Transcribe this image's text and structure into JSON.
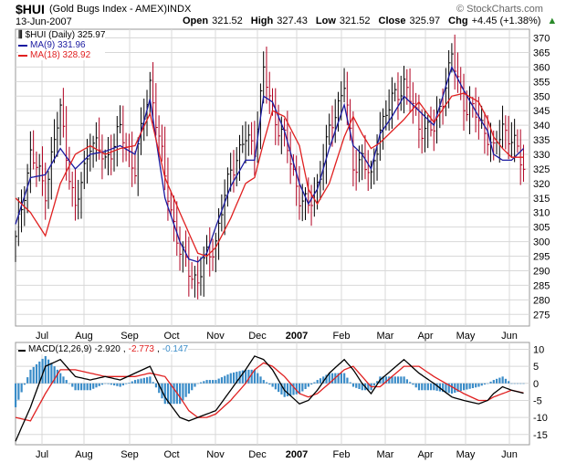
{
  "header": {
    "symbol": "$HUI",
    "name": "(Gold Bugs Index - AMEX)",
    "exchange": "INDX",
    "date": "13-Jun-2007",
    "open_label": "Open",
    "open": "321.52",
    "high_label": "High",
    "high": "327.43",
    "low_label": "Low",
    "low": "321.52",
    "close_label": "Close",
    "close": "325.97",
    "chg_label": "Chg",
    "chg": "+4.45 (+1.38%)",
    "watermark": "© StockCharts.com"
  },
  "legend": {
    "price": "$HUI (Daily) 325.97",
    "ma9": "MA(9) 331.96",
    "ma18": "MA(18) 328.92",
    "macd_prefix": "MACD(12,26,9)",
    "macd_value": "-2.920",
    "macd_signal": "-2.773",
    "macd_hist": "-0.147"
  },
  "colors": {
    "ma9": "#1a1aa0",
    "ma18": "#e02020",
    "price_up": "#000000",
    "price_down": "#b00020",
    "macd": "#000000",
    "signal": "#e02020",
    "histogram": "#3a8cc8",
    "grid": "#d8d8d8"
  },
  "chart_data": [
    {
      "type": "line",
      "title": "$HUI (Gold Bugs Index - AMEX)",
      "x_tick_labels": [
        "Jul",
        "Aug",
        "Sep",
        "Oct",
        "Nov",
        "Dec",
        "2007",
        "Feb",
        "Mar",
        "Apr",
        "May",
        "Jun"
      ],
      "ylim": [
        271,
        373
      ],
      "y_ticks": [
        275,
        280,
        285,
        290,
        295,
        300,
        305,
        310,
        315,
        320,
        325,
        330,
        335,
        340,
        345,
        350,
        355,
        360,
        365,
        370
      ],
      "grid": true,
      "series": [
        {
          "name": "$HUI (Daily)",
          "points": [
            [
              0,
              300
            ],
            [
              5,
              330
            ],
            [
              10,
              318
            ],
            [
              15,
              345
            ],
            [
              20,
              310
            ],
            [
              25,
              335
            ],
            [
              30,
              328
            ],
            [
              35,
              338
            ],
            [
              40,
              325
            ],
            [
              45,
              355
            ],
            [
              50,
              322
            ],
            [
              55,
              296
            ],
            [
              58,
              291
            ],
            [
              61,
              286
            ],
            [
              64,
              295
            ],
            [
              67,
              300
            ],
            [
              72,
              325
            ],
            [
              77,
              335
            ],
            [
              80,
              333
            ],
            [
              83,
              358
            ],
            [
              86,
              345
            ],
            [
              90,
              335
            ],
            [
              95,
              316
            ],
            [
              98,
              311
            ],
            [
              101,
              320
            ],
            [
              105,
              337
            ],
            [
              110,
              355
            ],
            [
              113,
              325
            ],
            [
              116,
              330
            ],
            [
              119,
              320
            ],
            [
              122,
              340
            ],
            [
              126,
              348
            ],
            [
              130,
              355
            ],
            [
              135,
              340
            ],
            [
              140,
              338
            ],
            [
              146,
              363
            ],
            [
              150,
              348
            ],
            [
              155,
              342
            ],
            [
              158,
              337
            ],
            [
              160,
              330
            ],
            [
              163,
              340
            ],
            [
              166,
              335
            ],
            [
              170,
              326
            ]
          ]
        },
        {
          "name": "MA(9)",
          "points": [
            [
              0,
              306
            ],
            [
              5,
              322
            ],
            [
              10,
              323
            ],
            [
              15,
              332
            ],
            [
              20,
              325
            ],
            [
              25,
              330
            ],
            [
              30,
              331
            ],
            [
              35,
              333
            ],
            [
              40,
              330
            ],
            [
              45,
              349
            ],
            [
              50,
              315
            ],
            [
              55,
              300
            ],
            [
              58,
              294
            ],
            [
              61,
              293
            ],
            [
              64,
              296
            ],
            [
              67,
              305
            ],
            [
              72,
              319
            ],
            [
              77,
              328
            ],
            [
              80,
              328
            ],
            [
              83,
              350
            ],
            [
              86,
              348
            ],
            [
              90,
              338
            ],
            [
              95,
              320
            ],
            [
              98,
              313
            ],
            [
              101,
              318
            ],
            [
              105,
              332
            ],
            [
              110,
              347
            ],
            [
              113,
              333
            ],
            [
              116,
              330
            ],
            [
              119,
              325
            ],
            [
              122,
              337
            ],
            [
              126,
              343
            ],
            [
              130,
              350
            ],
            [
              135,
              345
            ],
            [
              140,
              340
            ],
            [
              146,
              360
            ],
            [
              150,
              352
            ],
            [
              155,
              343
            ],
            [
              158,
              338
            ],
            [
              160,
              330
            ],
            [
              163,
              328
            ],
            [
              166,
              328
            ],
            [
              170,
              332
            ]
          ]
        },
        {
          "name": "MA(18)",
          "points": [
            [
              0,
              315
            ],
            [
              5,
              310
            ],
            [
              10,
              302
            ],
            [
              15,
              320
            ],
            [
              20,
              330
            ],
            [
              25,
              333
            ],
            [
              30,
              330
            ],
            [
              35,
              332
            ],
            [
              40,
              333
            ],
            [
              45,
              344
            ],
            [
              50,
              322
            ],
            [
              55,
              310
            ],
            [
              58,
              303
            ],
            [
              61,
              296
            ],
            [
              64,
              295
            ],
            [
              67,
              298
            ],
            [
              72,
              308
            ],
            [
              77,
              320
            ],
            [
              80,
              322
            ],
            [
              83,
              334
            ],
            [
              86,
              345
            ],
            [
              90,
              343
            ],
            [
              95,
              333
            ],
            [
              98,
              318
            ],
            [
              101,
              313
            ],
            [
              105,
              320
            ],
            [
              110,
              336
            ],
            [
              113,
              343
            ],
            [
              116,
              337
            ],
            [
              119,
              332
            ],
            [
              122,
              334
            ],
            [
              126,
              338
            ],
            [
              130,
              342
            ],
            [
              135,
              348
            ],
            [
              140,
              341
            ],
            [
              146,
              350
            ],
            [
              150,
              351
            ],
            [
              155,
              348
            ],
            [
              158,
              342
            ],
            [
              160,
              336
            ],
            [
              163,
              332
            ],
            [
              166,
              329
            ],
            [
              170,
              329
            ]
          ]
        }
      ]
    },
    {
      "type": "line",
      "title": "MACD(12,26,9)",
      "x_tick_labels": [
        "Jul",
        "Aug",
        "Sep",
        "Oct",
        "Nov",
        "Dec",
        "2007",
        "Feb",
        "Mar",
        "Apr",
        "May",
        "Jun"
      ],
      "ylim": [
        -18,
        12
      ],
      "y_ticks": [
        -15,
        -10,
        -5,
        0,
        5,
        10
      ],
      "grid": true,
      "series": [
        {
          "name": "MACD",
          "points": [
            [
              0,
              -17
            ],
            [
              5,
              -7
            ],
            [
              10,
              5
            ],
            [
              15,
              7
            ],
            [
              20,
              2
            ],
            [
              25,
              1
            ],
            [
              30,
              2
            ],
            [
              35,
              1
            ],
            [
              40,
              3
            ],
            [
              45,
              5
            ],
            [
              50,
              -4
            ],
            [
              55,
              -10
            ],
            [
              58,
              -11
            ],
            [
              61,
              -10
            ],
            [
              64,
              -9
            ],
            [
              67,
              -8
            ],
            [
              72,
              -2
            ],
            [
              77,
              4
            ],
            [
              80,
              8
            ],
            [
              83,
              7
            ],
            [
              86,
              4
            ],
            [
              90,
              -2
            ],
            [
              95,
              -6
            ],
            [
              98,
              -5
            ],
            [
              101,
              -2
            ],
            [
              105,
              3
            ],
            [
              110,
              7
            ],
            [
              113,
              4
            ],
            [
              116,
              0
            ],
            [
              119,
              -3
            ],
            [
              122,
              1
            ],
            [
              126,
              4
            ],
            [
              130,
              7
            ],
            [
              135,
              3
            ],
            [
              140,
              0
            ],
            [
              146,
              -4
            ],
            [
              150,
              -5
            ],
            [
              155,
              -6
            ],
            [
              158,
              -5
            ],
            [
              160,
              -3
            ],
            [
              163,
              -1
            ],
            [
              166,
              -2
            ],
            [
              170,
              -2.9
            ]
          ]
        },
        {
          "name": "Signal",
          "points": [
            [
              0,
              -10
            ],
            [
              5,
              -11
            ],
            [
              10,
              -3
            ],
            [
              15,
              4
            ],
            [
              20,
              4
            ],
            [
              25,
              3
            ],
            [
              30,
              2
            ],
            [
              35,
              2
            ],
            [
              40,
              2
            ],
            [
              45,
              3
            ],
            [
              50,
              2
            ],
            [
              55,
              -4
            ],
            [
              58,
              -8
            ],
            [
              61,
              -10
            ],
            [
              64,
              -10
            ],
            [
              67,
              -9
            ],
            [
              72,
              -5
            ],
            [
              77,
              0
            ],
            [
              80,
              4
            ],
            [
              83,
              6
            ],
            [
              86,
              5
            ],
            [
              90,
              2
            ],
            [
              95,
              -3
            ],
            [
              98,
              -4
            ],
            [
              101,
              -3
            ],
            [
              105,
              0
            ],
            [
              110,
              4
            ],
            [
              113,
              5
            ],
            [
              116,
              2
            ],
            [
              119,
              -1
            ],
            [
              122,
              -1
            ],
            [
              126,
              2
            ],
            [
              130,
              5
            ],
            [
              135,
              5
            ],
            [
              140,
              2
            ],
            [
              146,
              -1
            ],
            [
              150,
              -3
            ],
            [
              155,
              -5
            ],
            [
              158,
              -5
            ],
            [
              160,
              -4
            ],
            [
              163,
              -3
            ],
            [
              166,
              -2
            ],
            [
              170,
              -2.8
            ]
          ]
        }
      ]
    }
  ]
}
